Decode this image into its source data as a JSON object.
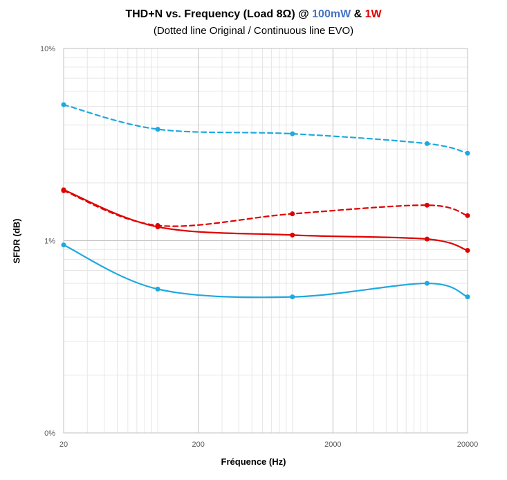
{
  "chart_data": {
    "type": "line",
    "title_parts": [
      {
        "text": "THD+N vs. Frequency (Load 8Ω) @ ",
        "color": "#000000"
      },
      {
        "text": "100mW",
        "color": "#4472c4"
      },
      {
        "text": " & ",
        "color": "#000000"
      },
      {
        "text": "1W",
        "color": "#e00000"
      }
    ],
    "subtitle": "(Dotted line Original / Continuous line EVO)",
    "xlabel": "Fréquence (Hz)",
    "ylabel": "SFDR (dB)",
    "x_scale": "log",
    "y_scale": "log",
    "xlim": [
      20,
      20000
    ],
    "ylim": [
      0.1,
      10
    ],
    "x_ticks": [
      {
        "value": 20,
        "label": "20"
      },
      {
        "value": 200,
        "label": "200"
      },
      {
        "value": 2000,
        "label": "2000"
      },
      {
        "value": 20000,
        "label": "20000"
      }
    ],
    "y_ticks": [
      {
        "value": 0.1,
        "label": "0%"
      },
      {
        "value": 1,
        "label": "1%"
      },
      {
        "value": 10,
        "label": "10%"
      }
    ],
    "grid": true,
    "series": [
      {
        "color": "#1ea8e0",
        "dashed": true,
        "smooth": true,
        "points": [
          [
            20,
            5.1
          ],
          [
            100,
            3.8
          ],
          [
            1000,
            3.6
          ],
          [
            10000,
            3.2
          ],
          [
            20000,
            2.85
          ]
        ]
      },
      {
        "color": "#e00000",
        "dashed": true,
        "smooth": true,
        "points": [
          [
            20,
            1.82
          ],
          [
            100,
            1.2
          ],
          [
            1000,
            1.38
          ],
          [
            10000,
            1.53
          ],
          [
            20000,
            1.35
          ]
        ]
      },
      {
        "color": "#e00000",
        "dashed": false,
        "smooth": true,
        "points": [
          [
            20,
            1.84
          ],
          [
            100,
            1.18
          ],
          [
            1000,
            1.07
          ],
          [
            10000,
            1.02
          ],
          [
            20000,
            0.89
          ]
        ]
      },
      {
        "color": "#1ea8e0",
        "dashed": false,
        "smooth": true,
        "points": [
          [
            20,
            0.95
          ],
          [
            100,
            0.56
          ],
          [
            1000,
            0.51
          ],
          [
            10000,
            0.6
          ],
          [
            20000,
            0.51
          ]
        ]
      }
    ]
  }
}
